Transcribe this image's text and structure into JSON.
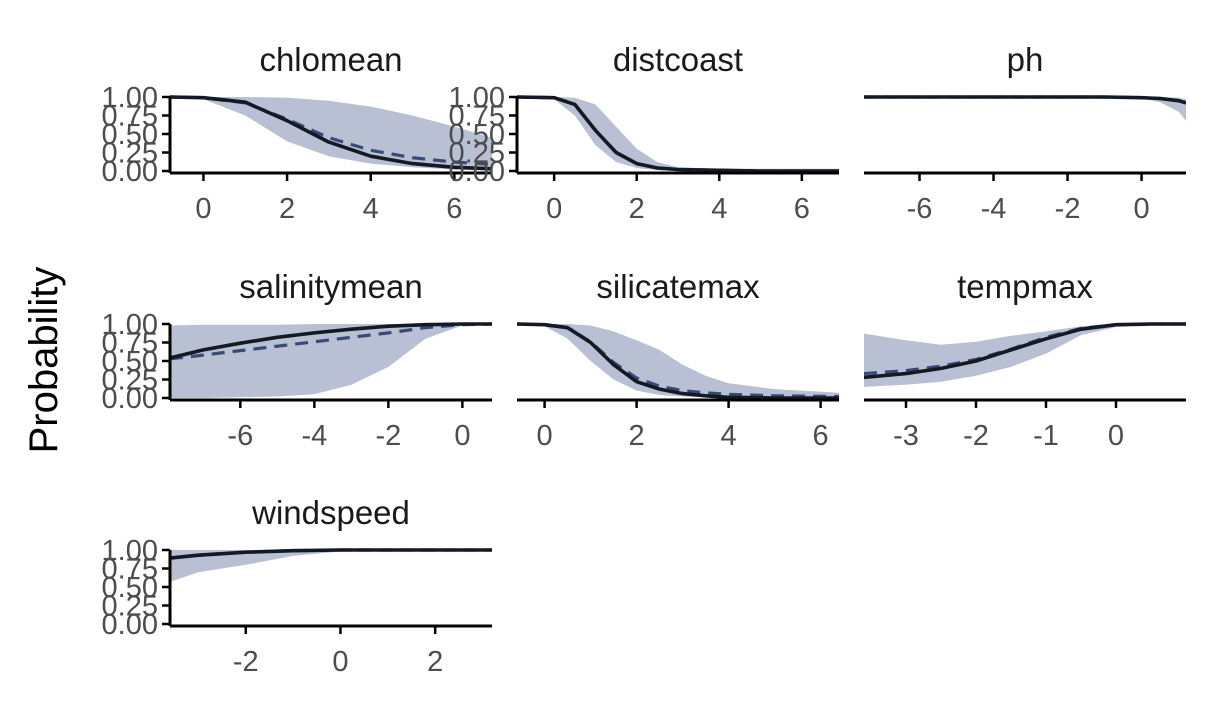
{
  "figure": {
    "ylabel": "Probability"
  },
  "chart_data": [
    {
      "type": "line",
      "title": "chlomean",
      "xlim": [
        -0.8,
        6.9
      ],
      "ylim": [
        0,
        1
      ],
      "xticks": [
        0,
        2,
        4,
        6
      ],
      "yticks": [
        0,
        0.25,
        0.5,
        0.75,
        1
      ],
      "ytick_labels": [
        "0.00",
        "0.25",
        "0.50",
        "0.75",
        "1.00"
      ],
      "series": [
        {
          "style": "solid",
          "x": [
            -0.8,
            0,
            1,
            2,
            3,
            4,
            5,
            6,
            6.9
          ],
          "y": [
            1.0,
            0.99,
            0.93,
            0.68,
            0.39,
            0.2,
            0.1,
            0.05,
            0.03
          ]
        },
        {
          "style": "dashed",
          "x": [
            -0.8,
            0,
            1,
            2,
            3,
            4,
            5,
            6,
            6.9
          ],
          "y": [
            1.0,
            0.99,
            0.92,
            0.7,
            0.45,
            0.28,
            0.18,
            0.12,
            0.09
          ]
        }
      ],
      "band": {
        "x": [
          -0.8,
          0,
          1,
          2,
          3,
          4,
          5,
          6,
          6.9
        ],
        "lower": [
          1.0,
          0.97,
          0.75,
          0.4,
          0.2,
          0.1,
          0.05,
          0.02,
          0.01
        ],
        "upper": [
          1.0,
          1.0,
          1.0,
          0.99,
          0.95,
          0.87,
          0.75,
          0.6,
          0.45
        ]
      }
    },
    {
      "type": "line",
      "title": "distcoast",
      "xlim": [
        -0.9,
        6.9
      ],
      "ylim": [
        0,
        1
      ],
      "xticks": [
        0,
        2,
        4,
        6
      ],
      "yticks": [
        0,
        0.25,
        0.5,
        0.75,
        1
      ],
      "ytick_labels": [
        "0.00",
        "0.25",
        "0.50",
        "0.75",
        "1.00"
      ],
      "series": [
        {
          "style": "solid",
          "x": [
            -0.9,
            0,
            0.5,
            1,
            1.5,
            2,
            2.5,
            3,
            4,
            5,
            6.9
          ],
          "y": [
            1.0,
            0.99,
            0.9,
            0.55,
            0.25,
            0.1,
            0.04,
            0.02,
            0.01,
            0.0,
            0.0
          ]
        },
        {
          "style": "dashed",
          "x": [
            -0.9,
            0,
            0.5,
            1,
            1.5,
            2,
            2.5,
            3,
            4,
            5,
            6.9
          ],
          "y": [
            1.0,
            0.99,
            0.9,
            0.55,
            0.25,
            0.1,
            0.04,
            0.02,
            0.01,
            0.0,
            0.0
          ]
        }
      ],
      "band": {
        "x": [
          -0.9,
          0,
          0.5,
          1,
          1.5,
          2,
          2.5,
          3,
          4,
          5,
          6.9
        ],
        "lower": [
          1.0,
          0.97,
          0.75,
          0.35,
          0.12,
          0.04,
          0.01,
          0.0,
          0.0,
          0.0,
          0.0
        ],
        "upper": [
          1.0,
          1.0,
          0.99,
          0.9,
          0.6,
          0.3,
          0.12,
          0.05,
          0.03,
          0.03,
          0.03
        ]
      }
    },
    {
      "type": "line",
      "title": "ph",
      "xlim": [
        -7.5,
        1.2
      ],
      "ylim": [
        0,
        1
      ],
      "xticks": [
        -6,
        -4,
        -2,
        0
      ],
      "yticks": [],
      "ytick_labels": [],
      "series": [
        {
          "style": "solid",
          "x": [
            -7.5,
            -4,
            -1,
            0,
            0.5,
            1,
            1.2
          ],
          "y": [
            1.0,
            1.0,
            1.0,
            0.99,
            0.98,
            0.95,
            0.92
          ]
        },
        {
          "style": "dashed",
          "x": [
            -7.5,
            -4,
            -1,
            0,
            0.5,
            1,
            1.2
          ],
          "y": [
            1.0,
            1.0,
            1.0,
            0.99,
            0.98,
            0.95,
            0.92
          ]
        }
      ],
      "band": {
        "x": [
          -7.5,
          -4,
          -1,
          0,
          0.5,
          1,
          1.2
        ],
        "lower": [
          1.0,
          1.0,
          1.0,
          0.98,
          0.93,
          0.8,
          0.68
        ],
        "upper": [
          1.0,
          1.0,
          1.0,
          1.0,
          1.0,
          0.99,
          0.97
        ]
      }
    },
    {
      "type": "line",
      "title": "salinitymean",
      "xlim": [
        -7.9,
        0.8
      ],
      "ylim": [
        0,
        1
      ],
      "xticks": [
        -6,
        -4,
        -2,
        0
      ],
      "yticks": [
        0,
        0.25,
        0.5,
        0.75,
        1
      ],
      "ytick_labels": [
        "0.00",
        "0.25",
        "0.50",
        "0.75",
        "1.00"
      ],
      "series": [
        {
          "style": "solid",
          "x": [
            -7.9,
            -7,
            -6,
            -5,
            -4,
            -3,
            -2,
            -1,
            0,
            0.8
          ],
          "y": [
            0.54,
            0.65,
            0.74,
            0.82,
            0.88,
            0.93,
            0.97,
            0.99,
            1.0,
            1.0
          ]
        },
        {
          "style": "dashed",
          "x": [
            -7.9,
            -7,
            -6,
            -5,
            -4,
            -3,
            -2,
            -1,
            0,
            0.8
          ],
          "y": [
            0.53,
            0.58,
            0.64,
            0.7,
            0.76,
            0.82,
            0.88,
            0.95,
            0.99,
            1.0
          ]
        }
      ],
      "band": {
        "x": [
          -7.9,
          -7,
          -6,
          -5,
          -4,
          -3,
          -2,
          -1,
          0,
          0.8
        ],
        "lower": [
          0.0,
          0.0,
          0.01,
          0.02,
          0.05,
          0.18,
          0.42,
          0.8,
          0.98,
          1.0
        ],
        "upper": [
          0.98,
          0.99,
          0.99,
          0.99,
          1.0,
          1.0,
          1.0,
          1.0,
          1.0,
          1.0
        ]
      }
    },
    {
      "type": "line",
      "title": "silicatemax",
      "xlim": [
        -0.6,
        6.4
      ],
      "ylim": [
        0,
        1
      ],
      "xticks": [
        0,
        2,
        4,
        6
      ],
      "yticks": [],
      "ytick_labels": [],
      "series": [
        {
          "style": "solid",
          "x": [
            -0.6,
            0,
            0.5,
            1,
            1.5,
            2,
            2.5,
            3,
            3.5,
            4,
            5,
            6.4
          ],
          "y": [
            1.0,
            0.99,
            0.95,
            0.75,
            0.45,
            0.22,
            0.12,
            0.06,
            0.03,
            0.01,
            0.0,
            0.0
          ]
        },
        {
          "style": "dashed",
          "x": [
            -0.6,
            0,
            0.5,
            1,
            1.5,
            2,
            2.5,
            3,
            3.5,
            4,
            5,
            6.4
          ],
          "y": [
            1.0,
            0.99,
            0.95,
            0.76,
            0.48,
            0.27,
            0.16,
            0.1,
            0.07,
            0.05,
            0.03,
            0.02
          ]
        }
      ],
      "band": {
        "x": [
          -0.6,
          0,
          0.5,
          1,
          1.5,
          2,
          2.5,
          3,
          3.5,
          4,
          5,
          6.4
        ],
        "lower": [
          1.0,
          0.97,
          0.8,
          0.5,
          0.25,
          0.1,
          0.04,
          0.02,
          0.01,
          0.0,
          0.0,
          0.0
        ],
        "upper": [
          1.0,
          1.0,
          1.0,
          0.98,
          0.9,
          0.78,
          0.65,
          0.45,
          0.3,
          0.2,
          0.12,
          0.07
        ]
      }
    },
    {
      "type": "line",
      "title": "tempmax",
      "xlim": [
        -3.6,
        1.0
      ],
      "ylim": [
        0,
        1
      ],
      "xticks": [
        -3,
        -2,
        -1,
        0
      ],
      "yticks": [],
      "ytick_labels": [],
      "series": [
        {
          "style": "solid",
          "x": [
            -3.6,
            -3,
            -2.5,
            -2,
            -1.5,
            -1,
            -0.5,
            0,
            0.5,
            1.0
          ],
          "y": [
            0.28,
            0.33,
            0.4,
            0.5,
            0.65,
            0.8,
            0.93,
            0.99,
            1.0,
            1.0
          ]
        },
        {
          "style": "dashed",
          "x": [
            -3.6,
            -3,
            -2.5,
            -2,
            -1.5,
            -1,
            -0.5,
            0,
            0.5,
            1.0
          ],
          "y": [
            0.33,
            0.37,
            0.43,
            0.52,
            0.66,
            0.82,
            0.94,
            0.99,
            1.0,
            1.0
          ]
        }
      ],
      "band": {
        "x": [
          -3.6,
          -3,
          -2.5,
          -2,
          -1.5,
          -1,
          -0.5,
          0,
          0.5,
          1.0
        ],
        "lower": [
          0.15,
          0.18,
          0.22,
          0.3,
          0.42,
          0.6,
          0.85,
          0.96,
          0.99,
          1.0
        ],
        "upper": [
          0.87,
          0.78,
          0.72,
          0.76,
          0.84,
          0.9,
          0.97,
          1.0,
          1.0,
          1.0
        ]
      }
    },
    {
      "type": "line",
      "title": "windspeed",
      "xlim": [
        -3.6,
        3.2
      ],
      "ylim": [
        0,
        1
      ],
      "xticks": [
        -2,
        0,
        2
      ],
      "yticks": [
        0,
        0.25,
        0.5,
        0.75,
        1
      ],
      "ytick_labels": [
        "0.00",
        "0.25",
        "0.50",
        "0.75",
        "1.00"
      ],
      "series": [
        {
          "style": "solid",
          "x": [
            -3.6,
            -3,
            -2,
            -1,
            0,
            1,
            2,
            3.2
          ],
          "y": [
            0.89,
            0.93,
            0.97,
            0.99,
            1.0,
            1.0,
            1.0,
            1.0
          ]
        },
        {
          "style": "dashed",
          "x": [
            -3.6,
            -3,
            -2,
            -1,
            0,
            1,
            2,
            3.2
          ],
          "y": [
            0.89,
            0.93,
            0.97,
            0.99,
            1.0,
            1.0,
            1.0,
            1.0
          ]
        }
      ],
      "band": {
        "x": [
          -3.6,
          -3,
          -2,
          -1,
          0,
          1,
          2,
          3.2
        ],
        "lower": [
          0.57,
          0.7,
          0.8,
          0.92,
          0.98,
          1.0,
          1.0,
          1.0
        ],
        "upper": [
          1.0,
          1.0,
          1.0,
          1.0,
          1.0,
          1.0,
          1.0,
          1.0
        ]
      }
    }
  ],
  "colors": {
    "band": "#b9c0d4",
    "solid_line": "#141a24",
    "dashed_line": "#3a4a78",
    "axis": "#000000",
    "tick_text": "#4d4d4d"
  }
}
